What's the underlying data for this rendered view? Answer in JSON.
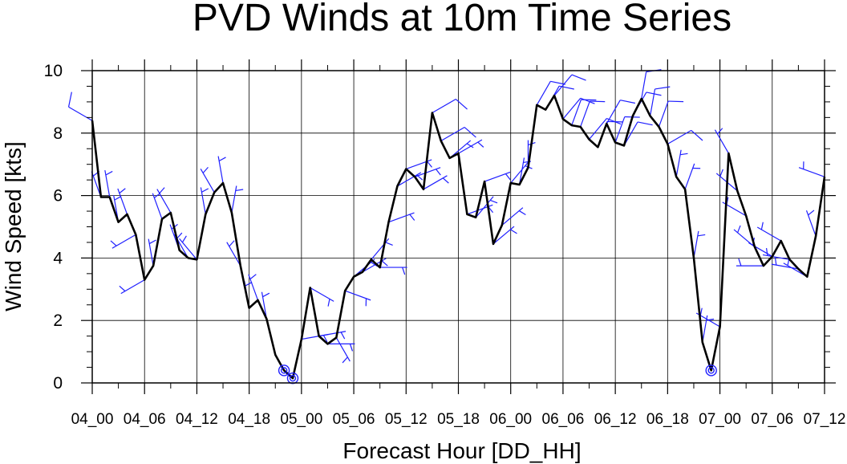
{
  "chart_data": {
    "type": "line",
    "title": "PVD Winds at 10m Time Series",
    "xlabel": "Forecast Hour [DD_HH]",
    "ylabel": "Wind Speed [kts]",
    "ylim": [
      0,
      10
    ],
    "xlim": [
      0,
      84
    ],
    "grid": true,
    "yticks": [
      0,
      2,
      4,
      6,
      8,
      10
    ],
    "xticks": [
      {
        "hour": 0,
        "label": "04_00"
      },
      {
        "hour": 6,
        "label": "04_06"
      },
      {
        "hour": 12,
        "label": "04_12"
      },
      {
        "hour": 18,
        "label": "04_18"
      },
      {
        "hour": 24,
        "label": "05_00"
      },
      {
        "hour": 30,
        "label": "05_06"
      },
      {
        "hour": 36,
        "label": "05_12"
      },
      {
        "hour": 42,
        "label": "05_18"
      },
      {
        "hour": 48,
        "label": "06_00"
      },
      {
        "hour": 54,
        "label": "06_06"
      },
      {
        "hour": 60,
        "label": "06_12"
      },
      {
        "hour": 66,
        "label": "06_18"
      },
      {
        "hour": 72,
        "label": "07_00"
      },
      {
        "hour": 78,
        "label": "07_06"
      },
      {
        "hour": 84,
        "label": "07_12"
      }
    ],
    "series": [
      {
        "color": "#000000",
        "points": [
          [
            0,
            8.4
          ],
          [
            1,
            5.95
          ],
          [
            2,
            5.95
          ],
          [
            3,
            5.15
          ],
          [
            4,
            5.4
          ],
          [
            5,
            4.75
          ],
          [
            6,
            3.3
          ],
          [
            7,
            3.75
          ],
          [
            8,
            5.25
          ],
          [
            9,
            5.45
          ],
          [
            10,
            4.25
          ],
          [
            11,
            4.0
          ],
          [
            12,
            3.95
          ],
          [
            13,
            5.4
          ],
          [
            14,
            6.1
          ],
          [
            15,
            6.4
          ],
          [
            16,
            5.45
          ],
          [
            17,
            3.75
          ],
          [
            18,
            2.4
          ],
          [
            19,
            2.65
          ],
          [
            20,
            2.05
          ],
          [
            21,
            0.9
          ],
          [
            22,
            0.4
          ],
          [
            23,
            0.15
          ],
          [
            24,
            1.4
          ],
          [
            25,
            3.05
          ],
          [
            26,
            1.5
          ],
          [
            27,
            1.25
          ],
          [
            28,
            1.45
          ],
          [
            29,
            2.95
          ],
          [
            30,
            3.4
          ],
          [
            31,
            3.55
          ],
          [
            32,
            3.95
          ],
          [
            33,
            3.7
          ],
          [
            34,
            5.15
          ],
          [
            35,
            6.3
          ],
          [
            36,
            6.85
          ],
          [
            37,
            6.6
          ],
          [
            38,
            6.2
          ],
          [
            39,
            8.65
          ],
          [
            40,
            7.75
          ],
          [
            41,
            7.2
          ],
          [
            42,
            7.35
          ],
          [
            43,
            5.4
          ],
          [
            44,
            5.3
          ],
          [
            45,
            6.45
          ],
          [
            46,
            4.45
          ],
          [
            47,
            5.05
          ],
          [
            48,
            6.4
          ],
          [
            49,
            6.35
          ],
          [
            50,
            6.9
          ],
          [
            51,
            8.9
          ],
          [
            52,
            8.75
          ],
          [
            53,
            9.2
          ],
          [
            54,
            8.45
          ],
          [
            55,
            8.25
          ],
          [
            56,
            8.2
          ],
          [
            57,
            7.8
          ],
          [
            58,
            7.55
          ],
          [
            59,
            8.3
          ],
          [
            60,
            7.7
          ],
          [
            61,
            7.6
          ],
          [
            62,
            8.55
          ],
          [
            63,
            9.1
          ],
          [
            64,
            8.55
          ],
          [
            65,
            8.2
          ],
          [
            66,
            7.65
          ],
          [
            67,
            6.6
          ],
          [
            68,
            6.2
          ],
          [
            69,
            4.0
          ],
          [
            70,
            1.3
          ],
          [
            71,
            0.4
          ],
          [
            72,
            1.8
          ],
          [
            73,
            7.35
          ],
          [
            74,
            6.15
          ],
          [
            75,
            5.35
          ],
          [
            76,
            4.35
          ],
          [
            77,
            3.75
          ],
          [
            78,
            4.05
          ],
          [
            79,
            4.55
          ],
          [
            80,
            3.95
          ],
          [
            81,
            3.65
          ],
          [
            82,
            3.4
          ],
          [
            83,
            4.7
          ],
          [
            84,
            6.6
          ]
        ]
      }
    ],
    "calm_markers": [
      {
        "x": 22,
        "y": 0.4
      },
      {
        "x": 23,
        "y": 0.15
      },
      {
        "x": 71,
        "y": 0.4
      }
    ],
    "wind_barbs": {
      "color": "#1f1fff",
      "direction_deg": [
        300,
        340,
        350,
        350,
        340,
        240,
        240,
        350,
        340,
        330,
        340,
        330,
        320,
        350,
        330,
        350,
        10,
        330,
        350,
        340,
        350,
        340,
        0,
        0,
        80,
        120,
        80,
        90,
        150,
        110,
        50,
        60,
        40,
        90,
        70,
        60,
        70,
        70,
        60,
        60,
        60,
        50,
        60,
        70,
        40,
        70,
        50,
        50,
        40,
        10,
        0,
        30,
        30,
        40,
        40,
        20,
        20,
        40,
        20,
        30,
        20,
        30,
        30,
        10,
        10,
        20,
        60,
        10,
        20,
        10,
        10,
        250,
        300,
        330,
        310,
        300,
        310,
        270,
        300,
        300,
        280,
        280,
        300,
        340,
        290
      ]
    }
  }
}
